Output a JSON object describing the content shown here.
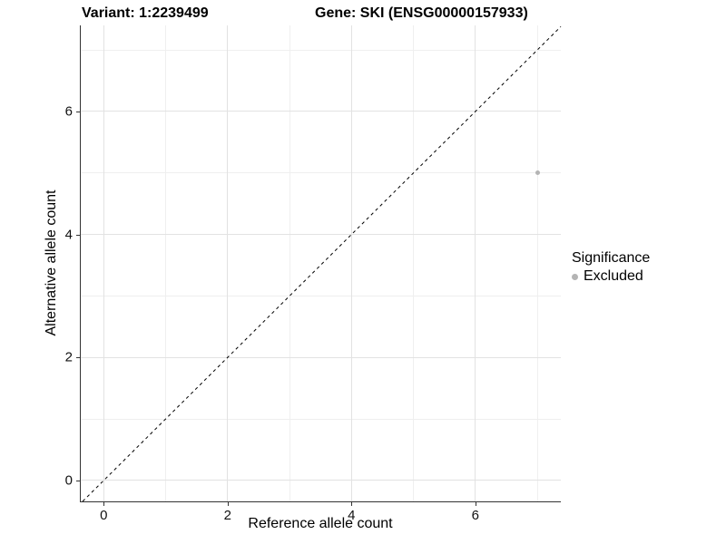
{
  "titles": {
    "variant": "Variant: 1:2239499",
    "gene": "Gene: SKI (ENSG00000157933)"
  },
  "chart_data": {
    "type": "scatter",
    "xlabel": "Reference allele count",
    "ylabel": "Alternative allele count",
    "xlim": [
      -0.37,
      7.38
    ],
    "ylim": [
      -0.34,
      7.4
    ],
    "x_major_ticks": [
      0,
      2,
      4,
      6
    ],
    "y_major_ticks": [
      0,
      2,
      4,
      6
    ],
    "x_minor_ticks": [
      1,
      3,
      5,
      7
    ],
    "y_minor_ticks": [
      1,
      3,
      5,
      7
    ],
    "grid": true,
    "points": [
      {
        "x": 7,
        "y": 5,
        "significance": "Excluded"
      }
    ],
    "reference_line": {
      "slope": 1,
      "intercept": 0,
      "style": "dashed"
    },
    "legend": {
      "title": "Significance",
      "position": "right",
      "entries": [
        {
          "label": "Excluded",
          "marker": "circle",
          "color": "#b4b4b4"
        }
      ]
    }
  },
  "colors": {
    "point": "#b4b4b4",
    "major_grid": "#e2e2e2",
    "minor_grid": "#efefef",
    "axis_line": "#333333",
    "dashed_line": "#000000"
  }
}
